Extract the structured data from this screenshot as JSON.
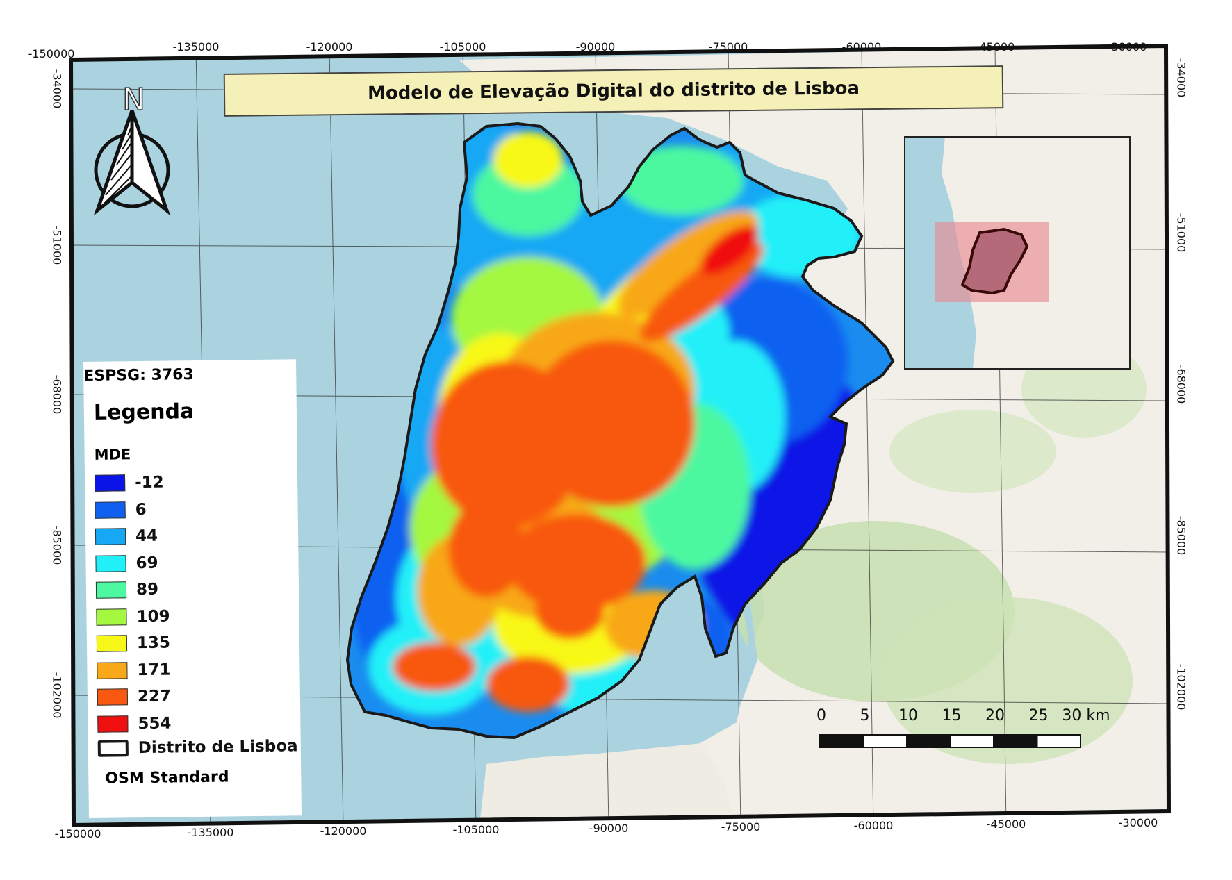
{
  "title": "Modelo de Elevação Digital do distrito de Lisboa",
  "crs_label": "ESPSG: 3763",
  "north_label": "N",
  "axes": {
    "top_ticks": [
      "-150000",
      "-135000",
      "-120000",
      "-105000",
      "-90000",
      "-75000",
      "-60000",
      "-45000",
      "-30000"
    ],
    "bottom_ticks": [
      "-150000",
      "-135000",
      "-120000",
      "-105000",
      "-90000",
      "-75000",
      "-60000",
      "-45000",
      "-30000"
    ],
    "left_ticks": [
      "-34000",
      "-51000",
      "-68000",
      "-85000",
      "-102000"
    ],
    "right_ticks": [
      "-34000",
      "-51000",
      "-68000",
      "-85000",
      "-102000"
    ]
  },
  "legend": {
    "title": "Legenda",
    "subtitle": "MDE",
    "classes": [
      {
        "label": "-12",
        "color": "#0a14e6"
      },
      {
        "label": "6",
        "color": "#1060f0"
      },
      {
        "label": "44",
        "color": "#16a8f4"
      },
      {
        "label": "69",
        "color": "#22f0f8"
      },
      {
        "label": "89",
        "color": "#4cf8a0"
      },
      {
        "label": "109",
        "color": "#a4f840"
      },
      {
        "label": "135",
        "color": "#f8f818"
      },
      {
        "label": "171",
        "color": "#f8a818"
      },
      {
        "label": "227",
        "color": "#f85810"
      },
      {
        "label": "554",
        "color": "#f01010"
      }
    ],
    "district_label": "Distrito de Lisboa",
    "basemap_label": "OSM Standard"
  },
  "scalebar": {
    "labels": [
      "0",
      "5",
      "10",
      "15",
      "20",
      "25",
      "30 km"
    ]
  },
  "colors": {
    "sea": "#aad3df",
    "land": "#f2efe9",
    "green": "#c8dfb0",
    "district_border": "#1a1a1a",
    "inset_highlight": "#e88a94"
  }
}
